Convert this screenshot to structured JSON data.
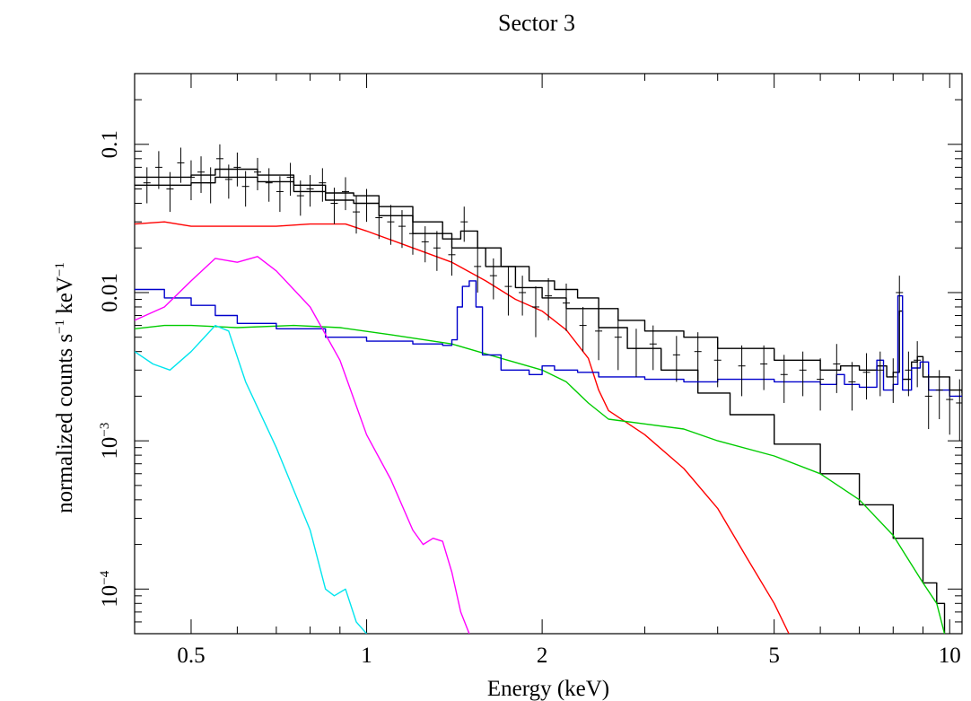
{
  "chart_data": {
    "type": "line",
    "title": "Sector 3",
    "xlabel": "Energy (keV)",
    "ylabel_parts": {
      "main": "normalized counts s",
      "exp1": "−1",
      "mid": " keV",
      "exp2": "−1"
    },
    "xscale": "log",
    "yscale": "log",
    "xlim": [
      0.4,
      10.5
    ],
    "ylim": [
      5e-05,
      0.3
    ],
    "x_ticks": [
      {
        "value": 0.5,
        "label": "0.5"
      },
      {
        "value": 1,
        "label": "1"
      },
      {
        "value": 2,
        "label": "2"
      },
      {
        "value": 5,
        "label": "5"
      },
      {
        "value": 10,
        "label": "10"
      }
    ],
    "y_ticks": [
      {
        "value": 0.1,
        "base": "0.1",
        "exp": ""
      },
      {
        "value": 0.01,
        "base": "0.01",
        "exp": ""
      },
      {
        "value": 0.001,
        "base": "10",
        "exp": "−3"
      },
      {
        "value": 0.0001,
        "base": "10",
        "exp": "−4"
      }
    ],
    "grid": false,
    "legend": "none",
    "series": [
      {
        "color": "#000000",
        "style": "step",
        "points": [
          [
            0.4,
            0.06
          ],
          [
            0.45,
            0.06
          ],
          [
            0.5,
            0.062
          ],
          [
            0.55,
            0.068
          ],
          [
            0.58,
            0.068
          ],
          [
            0.65,
            0.062
          ],
          [
            0.75,
            0.053
          ],
          [
            0.85,
            0.047
          ],
          [
            0.95,
            0.045
          ],
          [
            1.05,
            0.038
          ],
          [
            1.2,
            0.03
          ],
          [
            1.35,
            0.023
          ],
          [
            1.45,
            0.026
          ],
          [
            1.5,
            0.026
          ],
          [
            1.55,
            0.02
          ],
          [
            1.7,
            0.015
          ],
          [
            1.9,
            0.012
          ],
          [
            2.1,
            0.0105
          ],
          [
            2.3,
            0.0092
          ],
          [
            2.5,
            0.0078
          ],
          [
            2.7,
            0.0065
          ],
          [
            3.0,
            0.0055
          ],
          [
            3.5,
            0.005
          ],
          [
            4.0,
            0.0042
          ],
          [
            5.0,
            0.0035
          ],
          [
            6.0,
            0.003
          ],
          [
            6.5,
            0.0032
          ],
          [
            7.0,
            0.003
          ],
          [
            7.5,
            0.0032
          ],
          [
            7.8,
            0.0027
          ],
          [
            8.0,
            0.0029
          ],
          [
            8.2,
            0.0075
          ],
          [
            8.3,
            0.0026
          ],
          [
            8.6,
            0.0034
          ],
          [
            8.8,
            0.0037
          ],
          [
            9.0,
            0.0027
          ],
          [
            10.0,
            0.0022
          ],
          [
            10.5,
            0.0021
          ]
        ]
      },
      {
        "color": "#000000",
        "style": "step",
        "points": [
          [
            0.4,
            0.053
          ],
          [
            0.45,
            0.053
          ],
          [
            0.5,
            0.055
          ],
          [
            0.55,
            0.06
          ],
          [
            0.58,
            0.06
          ],
          [
            0.65,
            0.056
          ],
          [
            0.75,
            0.048
          ],
          [
            0.85,
            0.042
          ],
          [
            0.95,
            0.04
          ],
          [
            1.05,
            0.033
          ],
          [
            1.2,
            0.025
          ],
          [
            1.4,
            0.02
          ],
          [
            1.6,
            0.015
          ],
          [
            1.8,
            0.0108
          ],
          [
            2.0,
            0.0092
          ],
          [
            2.2,
            0.0078
          ],
          [
            2.5,
            0.0058
          ],
          [
            2.8,
            0.0042
          ],
          [
            3.2,
            0.003
          ],
          [
            3.7,
            0.0021
          ],
          [
            4.2,
            0.0015
          ],
          [
            5.0,
            0.00095
          ],
          [
            6.0,
            0.0006
          ],
          [
            7.0,
            0.00037
          ],
          [
            8.0,
            0.00022
          ],
          [
            9.0,
            0.00011
          ],
          [
            9.5,
            8e-05
          ],
          [
            9.8,
            5e-05
          ]
        ]
      },
      {
        "color": "#ff0000",
        "style": "line",
        "points": [
          [
            0.4,
            0.029
          ],
          [
            0.45,
            0.03
          ],
          [
            0.5,
            0.028
          ],
          [
            0.6,
            0.028
          ],
          [
            0.7,
            0.028
          ],
          [
            0.8,
            0.029
          ],
          [
            0.92,
            0.029
          ],
          [
            1.0,
            0.026
          ],
          [
            1.2,
            0.02
          ],
          [
            1.4,
            0.016
          ],
          [
            1.6,
            0.012
          ],
          [
            1.8,
            0.009
          ],
          [
            2.0,
            0.0075
          ],
          [
            2.2,
            0.0056
          ],
          [
            2.4,
            0.0036
          ],
          [
            2.5,
            0.0022
          ],
          [
            2.6,
            0.0016
          ],
          [
            3.0,
            0.0011
          ],
          [
            3.5,
            0.00065
          ],
          [
            4.0,
            0.00035
          ],
          [
            4.5,
            0.00016
          ],
          [
            5.0,
            8e-05
          ],
          [
            5.3,
            5e-05
          ]
        ]
      },
      {
        "color": "#00cc00",
        "style": "line",
        "points": [
          [
            0.4,
            0.0057
          ],
          [
            0.45,
            0.006
          ],
          [
            0.5,
            0.006
          ],
          [
            0.6,
            0.0058
          ],
          [
            0.75,
            0.006
          ],
          [
            0.9,
            0.0058
          ],
          [
            1.1,
            0.0052
          ],
          [
            1.4,
            0.0045
          ],
          [
            1.7,
            0.0036
          ],
          [
            2.0,
            0.003
          ],
          [
            2.2,
            0.0025
          ],
          [
            2.4,
            0.0018
          ],
          [
            2.6,
            0.0014
          ],
          [
            3.0,
            0.0013
          ],
          [
            3.5,
            0.0012
          ],
          [
            4.0,
            0.001
          ],
          [
            5.0,
            0.00079
          ],
          [
            6.0,
            0.0006
          ],
          [
            7.0,
            0.0004
          ],
          [
            8.0,
            0.00023
          ],
          [
            9.0,
            0.00011
          ],
          [
            9.5,
            8e-05
          ],
          [
            9.8,
            5e-05
          ]
        ]
      },
      {
        "color": "#0000cc",
        "style": "step",
        "points": [
          [
            0.4,
            0.0105
          ],
          [
            0.45,
            0.0092
          ],
          [
            0.5,
            0.0082
          ],
          [
            0.55,
            0.007
          ],
          [
            0.6,
            0.0062
          ],
          [
            0.7,
            0.0057
          ],
          [
            0.85,
            0.005
          ],
          [
            1.0,
            0.0047
          ],
          [
            1.2,
            0.0045
          ],
          [
            1.35,
            0.0044
          ],
          [
            1.4,
            0.0048
          ],
          [
            1.43,
            0.008
          ],
          [
            1.46,
            0.011
          ],
          [
            1.5,
            0.012
          ],
          [
            1.54,
            0.008
          ],
          [
            1.58,
            0.0038
          ],
          [
            1.7,
            0.003
          ],
          [
            1.9,
            0.0028
          ],
          [
            2.0,
            0.0032
          ],
          [
            2.1,
            0.003
          ],
          [
            2.3,
            0.0029
          ],
          [
            2.5,
            0.0027
          ],
          [
            3.0,
            0.0026
          ],
          [
            3.5,
            0.0025
          ],
          [
            4.0,
            0.0026
          ],
          [
            5.0,
            0.0025
          ],
          [
            6.0,
            0.0024
          ],
          [
            6.4,
            0.0028
          ],
          [
            6.6,
            0.0024
          ],
          [
            7.0,
            0.0023
          ],
          [
            7.5,
            0.0035
          ],
          [
            7.7,
            0.0022
          ],
          [
            8.0,
            0.0024
          ],
          [
            8.15,
            0.0095
          ],
          [
            8.3,
            0.0022
          ],
          [
            8.6,
            0.0031
          ],
          [
            8.9,
            0.0034
          ],
          [
            9.2,
            0.0022
          ],
          [
            10.0,
            0.002
          ],
          [
            10.5,
            0.002
          ]
        ]
      },
      {
        "color": "#ff00ff",
        "style": "line",
        "points": [
          [
            0.4,
            0.0065
          ],
          [
            0.45,
            0.008
          ],
          [
            0.5,
            0.012
          ],
          [
            0.55,
            0.017
          ],
          [
            0.6,
            0.016
          ],
          [
            0.65,
            0.0175
          ],
          [
            0.7,
            0.014
          ],
          [
            0.8,
            0.008
          ],
          [
            0.9,
            0.0035
          ],
          [
            1.0,
            0.0011
          ],
          [
            1.1,
            0.00055
          ],
          [
            1.2,
            0.00025
          ],
          [
            1.25,
            0.0002
          ],
          [
            1.3,
            0.00022
          ],
          [
            1.35,
            0.00021
          ],
          [
            1.4,
            0.00013
          ],
          [
            1.45,
            7e-05
          ],
          [
            1.5,
            5e-05
          ]
        ]
      },
      {
        "color": "#00e5ee",
        "style": "line",
        "points": [
          [
            0.4,
            0.004
          ],
          [
            0.43,
            0.0033
          ],
          [
            0.46,
            0.003
          ],
          [
            0.5,
            0.004
          ],
          [
            0.55,
            0.006
          ],
          [
            0.58,
            0.0055
          ],
          [
            0.62,
            0.0025
          ],
          [
            0.7,
            0.0009
          ],
          [
            0.8,
            0.00025
          ],
          [
            0.85,
            0.0001
          ],
          [
            0.88,
            9e-05
          ],
          [
            0.92,
            0.0001
          ],
          [
            0.96,
            6e-05
          ],
          [
            1.0,
            5e-05
          ]
        ]
      },
      {
        "color": "#000000",
        "style": "errorbars",
        "points": [
          [
            0.42,
            0.055,
            0.015
          ],
          [
            0.44,
            0.07,
            0.02
          ],
          [
            0.46,
            0.05,
            0.015
          ],
          [
            0.48,
            0.075,
            0.02
          ],
          [
            0.5,
            0.06,
            0.018
          ],
          [
            0.52,
            0.065,
            0.018
          ],
          [
            0.54,
            0.055,
            0.015
          ],
          [
            0.56,
            0.08,
            0.02
          ],
          [
            0.58,
            0.058,
            0.015
          ],
          [
            0.6,
            0.07,
            0.018
          ],
          [
            0.62,
            0.052,
            0.014
          ],
          [
            0.65,
            0.065,
            0.016
          ],
          [
            0.68,
            0.055,
            0.014
          ],
          [
            0.71,
            0.048,
            0.013
          ],
          [
            0.74,
            0.06,
            0.015
          ],
          [
            0.77,
            0.045,
            0.012
          ],
          [
            0.8,
            0.05,
            0.012
          ],
          [
            0.84,
            0.055,
            0.014
          ],
          [
            0.88,
            0.04,
            0.011
          ],
          [
            0.92,
            0.048,
            0.012
          ],
          [
            0.96,
            0.035,
            0.01
          ],
          [
            1.0,
            0.04,
            0.01
          ],
          [
            1.05,
            0.032,
            0.009
          ],
          [
            1.1,
            0.03,
            0.009
          ],
          [
            1.15,
            0.028,
            0.008
          ],
          [
            1.2,
            0.025,
            0.007
          ],
          [
            1.26,
            0.022,
            0.006
          ],
          [
            1.32,
            0.02,
            0.006
          ],
          [
            1.4,
            0.018,
            0.005
          ],
          [
            1.47,
            0.03,
            0.008
          ],
          [
            1.55,
            0.015,
            0.005
          ],
          [
            1.65,
            0.013,
            0.004
          ],
          [
            1.75,
            0.011,
            0.004
          ],
          [
            1.85,
            0.01,
            0.003
          ],
          [
            1.95,
            0.008,
            0.003
          ],
          [
            2.05,
            0.0095,
            0.003
          ],
          [
            2.2,
            0.0085,
            0.003
          ],
          [
            2.35,
            0.006,
            0.002
          ],
          [
            2.5,
            0.0055,
            0.002
          ],
          [
            2.7,
            0.005,
            0.002
          ],
          [
            2.9,
            0.0042,
            0.0015
          ],
          [
            3.1,
            0.0045,
            0.0015
          ],
          [
            3.4,
            0.0038,
            0.0013
          ],
          [
            3.7,
            0.004,
            0.0014
          ],
          [
            4.0,
            0.0035,
            0.0012
          ],
          [
            4.4,
            0.0032,
            0.0012
          ],
          [
            4.8,
            0.0033,
            0.0011
          ],
          [
            5.2,
            0.0028,
            0.001
          ],
          [
            5.6,
            0.003,
            0.001
          ],
          [
            6.0,
            0.0026,
            0.001
          ],
          [
            6.4,
            0.0033,
            0.0012
          ],
          [
            6.8,
            0.0025,
            0.0009
          ],
          [
            7.2,
            0.0029,
            0.001
          ],
          [
            7.6,
            0.003,
            0.001
          ],
          [
            8.0,
            0.0027,
            0.0009
          ],
          [
            8.2,
            0.01,
            0.003
          ],
          [
            8.5,
            0.003,
            0.001
          ],
          [
            8.8,
            0.0035,
            0.0012
          ],
          [
            9.2,
            0.002,
            0.0008
          ],
          [
            9.6,
            0.0022,
            0.0008
          ],
          [
            10.0,
            0.0019,
            0.0008
          ],
          [
            10.4,
            0.0018,
            0.0008
          ]
        ]
      }
    ]
  }
}
